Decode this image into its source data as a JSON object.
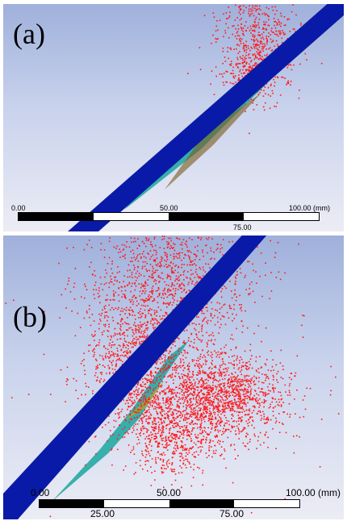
{
  "panel_a": {
    "label": "(a)",
    "scale_bar": {
      "tick_top_left": "0.00",
      "tick_top_mid": "50.00",
      "tick_top_right": "100.00 (mm)",
      "tick_bottom_mid": "75.00"
    }
  },
  "panel_b": {
    "label": "(b)",
    "scale_bar": {
      "tick_top_left": "0.00",
      "tick_top_mid": "50.00",
      "tick_top_right": "100.00 (mm)",
      "tick_bottom_left": "25.00",
      "tick_bottom_right": "75.00"
    }
  },
  "colors": {
    "wall": "#0a1aa8",
    "particles": "#ff1a1a",
    "deposit": "#1aa6a0"
  }
}
